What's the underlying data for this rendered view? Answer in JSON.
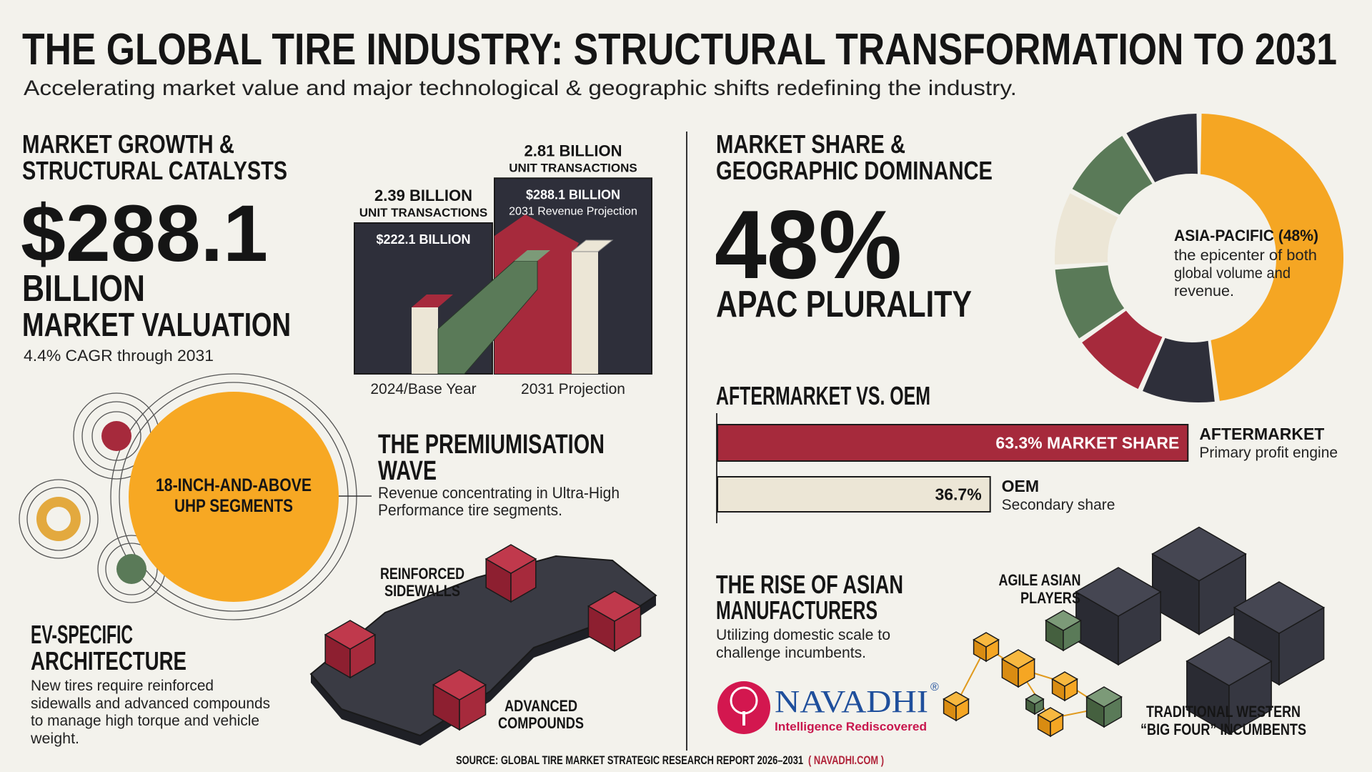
{
  "header": {
    "title": "THE GLOBAL TIRE INDUSTRY: STRUCTURAL TRANSFORMATION TO 2031",
    "subtitle": "Accelerating market value and major technological & geographic shifts redefining the industry."
  },
  "market_growth": {
    "heading": [
      "MARKET GROWTH &",
      "STRUCTURAL CATALYSTS"
    ],
    "big_value": "$288.1",
    "big_unit": "BILLION",
    "big_caption": "MARKET VALUATION",
    "cagr": "4.4% CAGR through 2031"
  },
  "revenue_chart": {
    "bars": [
      {
        "category": "2024/Base Year",
        "units_label": "2.39 BILLION",
        "units_caption": "UNIT TRANSACTIONS",
        "revenue": 222.1,
        "revenue_label": "$222.1 BILLION"
      },
      {
        "category": "2031 Projection",
        "units_label": "2.81 BILLION",
        "units_caption": "UNIT TRANSACTIONS",
        "revenue": 288.1,
        "revenue_label": "$288.1 BILLION",
        "revenue_caption": "2031 Revenue Projection"
      }
    ]
  },
  "premiumisation": {
    "circle_label": [
      "18-INCH-AND-ABOVE",
      "UHP SEGMENTS"
    ],
    "heading": [
      "THE PREMIUMISATION",
      "WAVE"
    ],
    "text": [
      "Revenue concentrating in Ultra-High",
      "Performance tire segments."
    ]
  },
  "ev": {
    "heading": [
      "EV-SPECIFIC",
      "ARCHITECTURE"
    ],
    "text": [
      "New tires require reinforced",
      "sidewalls and advanced compounds",
      "to manage high torque and vehicle",
      "weight."
    ],
    "label_sidewalls": [
      "REINFORCED",
      "SIDEWALLS"
    ],
    "label_compounds": [
      "ADVANCED",
      "COMPOUNDS"
    ]
  },
  "market_share": {
    "heading": [
      "MARKET SHARE &",
      "GEOGRAPHIC DOMINANCE"
    ],
    "big_value": "48%",
    "big_caption": "APAC PLURALITY",
    "apac_share": 48,
    "donut_label": "ASIA-PACIFIC (48%)",
    "donut_text": [
      "the epicenter of both",
      "global volume and",
      "revenue."
    ]
  },
  "aftermarket": {
    "heading": "AFTERMARKET VS. OEM",
    "bars": [
      {
        "value": 63.3,
        "value_label": "63.3% MARKET SHARE",
        "name": "AFTERMARKET",
        "caption": "Primary profit engine"
      },
      {
        "value": 36.7,
        "value_label": "36.7%",
        "name": "OEM",
        "caption": "Secondary share"
      }
    ]
  },
  "asian": {
    "heading": [
      "THE RISE OF ASIAN",
      "MANUFACTURERS"
    ],
    "text": [
      "Utilizing domestic scale to",
      "challenge incumbents."
    ],
    "agile_label": [
      "AGILE ASIAN",
      "PLAYERS"
    ],
    "western_label": [
      "TRADITIONAL WESTERN",
      "“BIG FOUR” INCUMBENTS"
    ]
  },
  "logo": {
    "name": "NAVADHI",
    "mark": "®",
    "tagline": "Intelligence Rediscovered"
  },
  "footer": {
    "source": "SOURCE: GLOBAL TIRE MARKET STRATEGIC RESEARCH REPORT 2026–2031",
    "link": "( NAVADHI.COM )"
  }
}
